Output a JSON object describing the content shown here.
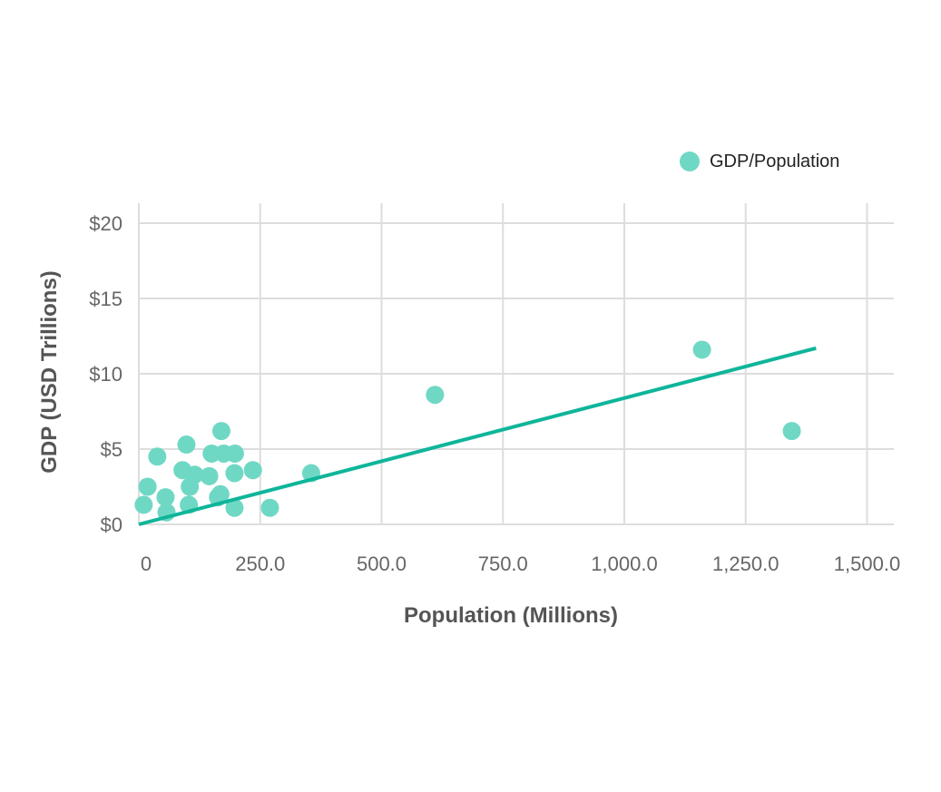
{
  "chart_data": {
    "type": "scatter",
    "title": "",
    "xlabel": "Population (Millions)",
    "ylabel": "GDP (USD Trillions)",
    "xlim": [
      0,
      1550
    ],
    "ylim": [
      0,
      20
    ],
    "x_ticks": [
      0,
      250,
      500,
      750,
      1000,
      1250,
      1500
    ],
    "x_tick_labels": [
      "0",
      "250.0",
      "500.0",
      "750.0",
      "1,000.0",
      "1,250.0",
      "1,500.0"
    ],
    "y_ticks": [
      0,
      5,
      10,
      15,
      20
    ],
    "y_tick_labels": [
      "$0",
      "$5",
      "$10",
      "$15",
      "$20"
    ],
    "grid": true,
    "legend_position": "top-right",
    "colors": {
      "points": "#6fd8c4",
      "trend": "#0fb59a",
      "grid": "#dddddd"
    },
    "series": [
      {
        "name": "GDP/Population",
        "points": [
          {
            "x": 10,
            "y": 1.3
          },
          {
            "x": 18,
            "y": 2.5
          },
          {
            "x": 38,
            "y": 4.5
          },
          {
            "x": 55,
            "y": 1.8
          },
          {
            "x": 57,
            "y": 0.8
          },
          {
            "x": 90,
            "y": 3.6
          },
          {
            "x": 98,
            "y": 5.3
          },
          {
            "x": 103,
            "y": 1.3
          },
          {
            "x": 105,
            "y": 2.5
          },
          {
            "x": 115,
            "y": 3.3
          },
          {
            "x": 145,
            "y": 3.2
          },
          {
            "x": 150,
            "y": 4.7
          },
          {
            "x": 163,
            "y": 1.8
          },
          {
            "x": 168,
            "y": 2.0
          },
          {
            "x": 170,
            "y": 6.2
          },
          {
            "x": 175,
            "y": 4.7
          },
          {
            "x": 197,
            "y": 1.1
          },
          {
            "x": 197,
            "y": 3.4
          },
          {
            "x": 198,
            "y": 4.7
          },
          {
            "x": 235,
            "y": 3.6
          },
          {
            "x": 270,
            "y": 1.1
          },
          {
            "x": 355,
            "y": 3.4
          },
          {
            "x": 610,
            "y": 8.6
          },
          {
            "x": 1160,
            "y": 11.6
          },
          {
            "x": 1345,
            "y": 6.2
          }
        ]
      }
    ],
    "trendline": {
      "from": {
        "x": 0,
        "y": 0
      },
      "to": {
        "x": 1395,
        "y": 11.7
      }
    }
  }
}
